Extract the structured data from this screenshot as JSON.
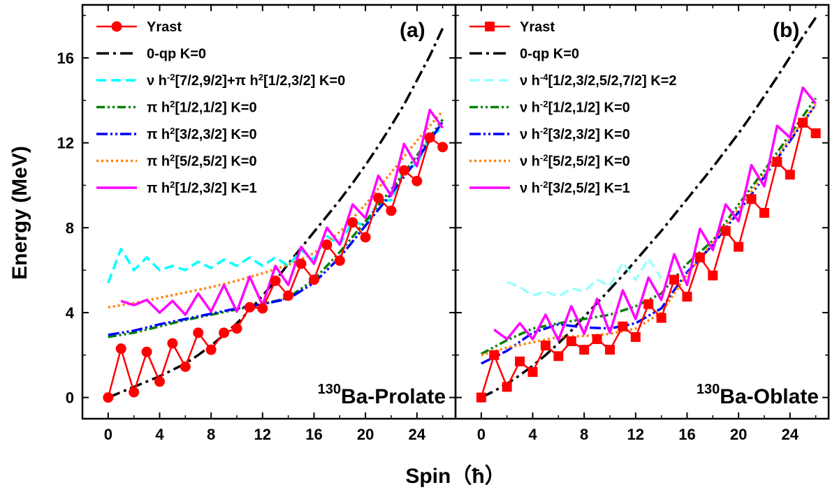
{
  "figure": {
    "ylabel": "Energy (MeV)",
    "xlabel": "Spin（ħ）"
  },
  "chart_data": [
    {
      "type": "line",
      "panel_label": "(a)",
      "nucleus_mass": "130",
      "nucleus_label": "Ba-Prolate",
      "xlabel": "Spin（ħ）",
      "ylabel": "Energy (MeV)",
      "xlim": [
        -2,
        27
      ],
      "ylim": [
        -1,
        18.5
      ],
      "xticks": [
        0,
        4,
        8,
        12,
        16,
        20,
        24
      ],
      "yticks": [
        0,
        4,
        8,
        12,
        16
      ],
      "legend_position": "top-left",
      "series": [
        {
          "name": "Yrast",
          "legend_segments": [
            [
              "Yrast",
              ""
            ]
          ],
          "color": "#ff0000",
          "dash": "",
          "width": 2.5,
          "marker": "circle",
          "x": [
            0,
            1,
            2,
            3,
            4,
            5,
            6,
            7,
            8,
            9,
            10,
            11,
            12,
            13,
            14,
            15,
            16,
            17,
            18,
            19,
            20,
            21,
            22,
            23,
            24,
            25,
            26
          ],
          "y": [
            0,
            2.3,
            0.25,
            2.15,
            0.75,
            2.55,
            1.45,
            3.05,
            2.25,
            3.05,
            3.25,
            4.25,
            4.2,
            5.5,
            4.8,
            6.3,
            5.55,
            7.2,
            6.45,
            8.25,
            7.55,
            9.4,
            8.8,
            10.7,
            10.2,
            12.25,
            11.8
          ]
        },
        {
          "name": "0-qp K=0",
          "legend_segments": [
            [
              "0-qp K=0",
              ""
            ]
          ],
          "color": "#000000",
          "dash": "18,6,4,6",
          "width": 3.5,
          "marker": "",
          "x": [
            0,
            1,
            2,
            3,
            4,
            5,
            6,
            7,
            8,
            9,
            10,
            11,
            12,
            13,
            14,
            15,
            16,
            17,
            18,
            19,
            20,
            21,
            22,
            23,
            24,
            25,
            26
          ],
          "y": [
            0,
            0.25,
            0.5,
            0.75,
            1.0,
            1.3,
            1.6,
            2.0,
            2.45,
            2.95,
            3.5,
            4.1,
            4.8,
            5.5,
            6.3,
            7.05,
            7.8,
            8.55,
            9.3,
            10.1,
            10.95,
            11.85,
            12.8,
            13.8,
            14.95,
            16.1,
            17.4
          ]
        },
        {
          "name": "νh-2[7/2,9/2]+πh2[1/2,3/2] K=0",
          "legend_segments": [
            [
              "ν h",
              ""
            ],
            [
              "-2",
              "sup"
            ],
            [
              "[7/2,9/2]+π h",
              ""
            ],
            [
              "2",
              "sup"
            ],
            [
              "[1/2,3/2]  K=0",
              ""
            ]
          ],
          "color": "#00ffff",
          "dash": "14,7",
          "width": 3.5,
          "marker": "",
          "x": [
            0,
            1,
            2,
            3,
            4,
            5,
            6,
            7,
            8,
            9,
            10,
            11,
            12,
            13,
            14,
            15,
            16,
            17,
            18,
            19,
            20,
            21,
            22,
            23,
            24,
            25,
            26
          ],
          "y": [
            5.4,
            7.0,
            6.0,
            6.6,
            6.0,
            6.2,
            6.0,
            6.4,
            6.1,
            6.5,
            6.2,
            6.6,
            6.2,
            6.6,
            6.2,
            6.95,
            6.5,
            7.6,
            7.2,
            8.3,
            8.1,
            9.25,
            9.3,
            10.7,
            11.0,
            12.3,
            12.7
          ]
        },
        {
          "name": "πh2[1/2,1/2] K=0",
          "legend_segments": [
            [
              "π h",
              ""
            ],
            [
              "2",
              "sup"
            ],
            [
              "[1/2,1/2] K=0",
              ""
            ]
          ],
          "color": "#008000",
          "dash": "12,4,3,4,3,4",
          "width": 3.5,
          "marker": "",
          "x": [
            0,
            2,
            4,
            6,
            8,
            10,
            12,
            14,
            16,
            18,
            20,
            22,
            24,
            26
          ],
          "y": [
            2.85,
            3.05,
            3.35,
            3.65,
            3.9,
            4.15,
            4.4,
            4.7,
            5.55,
            6.85,
            8.3,
            9.8,
            11.4,
            13.1
          ]
        },
        {
          "name": "πh2[3/2,3/2] K=0",
          "legend_segments": [
            [
              "π h",
              ""
            ],
            [
              "2",
              "sup"
            ],
            [
              "[3/2,3/2] K=0",
              ""
            ]
          ],
          "color": "#0000ff",
          "dash": "16,4,3,4,3,4",
          "width": 3.5,
          "marker": "",
          "x": [
            0,
            2,
            4,
            6,
            8,
            10,
            12,
            14,
            16,
            18,
            20,
            22,
            24,
            26
          ],
          "y": [
            2.95,
            3.15,
            3.45,
            3.7,
            3.95,
            4.2,
            4.4,
            4.65,
            5.4,
            6.6,
            8.1,
            9.6,
            11.2,
            13.0
          ]
        },
        {
          "name": "πh2[5/2,5/2] K=0",
          "legend_segments": [
            [
              "π h",
              ""
            ],
            [
              "2",
              "sup"
            ],
            [
              "[5/2,5/2] K=0",
              ""
            ]
          ],
          "color": "#ff8000",
          "dash": "3,4",
          "width": 3.5,
          "marker": "",
          "x": [
            0,
            2,
            4,
            6,
            8,
            10,
            12,
            14,
            16,
            18,
            20,
            22,
            24,
            26
          ],
          "y": [
            4.25,
            4.45,
            4.7,
            4.95,
            5.2,
            5.5,
            5.85,
            6.25,
            6.8,
            7.8,
            9.1,
            10.6,
            12.1,
            13.5
          ]
        },
        {
          "name": "πh2[1/2,3/2] K=1",
          "legend_segments": [
            [
              "π h",
              ""
            ],
            [
              "2",
              "sup"
            ],
            [
              "[1/2,3/2] K=1",
              ""
            ]
          ],
          "color": "#ff00ff",
          "dash": "",
          "width": 3.5,
          "marker": "",
          "x": [
            1,
            2,
            3,
            4,
            5,
            6,
            7,
            8,
            9,
            10,
            11,
            12,
            13,
            14,
            15,
            16,
            17,
            18,
            19,
            20,
            21,
            22,
            23,
            24,
            25,
            26
          ],
          "y": [
            4.55,
            4.35,
            4.6,
            4.0,
            4.55,
            3.9,
            4.9,
            4.05,
            5.3,
            4.05,
            5.7,
            4.35,
            6.2,
            5.3,
            7.1,
            6.3,
            8.0,
            7.2,
            9.1,
            8.45,
            10.45,
            9.5,
            11.95,
            10.9,
            13.55,
            12.7
          ]
        }
      ]
    },
    {
      "type": "line",
      "panel_label": "(b)",
      "nucleus_mass": "130",
      "nucleus_label": "Ba-Oblate",
      "xlabel": "Spin（ħ）",
      "ylabel": "Energy (MeV)",
      "xlim": [
        -2,
        27
      ],
      "ylim": [
        -1,
        18.5
      ],
      "xticks": [
        0,
        4,
        8,
        12,
        16,
        20,
        24
      ],
      "yticks": [
        0,
        4,
        8,
        12,
        16
      ],
      "legend_position": "top-left",
      "series": [
        {
          "name": "Yrast",
          "legend_segments": [
            [
              "Yrast",
              ""
            ]
          ],
          "color": "#ff0000",
          "dash": "",
          "width": 2.5,
          "marker": "square",
          "x": [
            0,
            1,
            2,
            3,
            4,
            5,
            6,
            7,
            8,
            9,
            10,
            11,
            12,
            13,
            14,
            15,
            16,
            17,
            18,
            19,
            20,
            21,
            22,
            23,
            24,
            25,
            26
          ],
          "y": [
            0,
            2.0,
            0.5,
            1.7,
            1.2,
            2.45,
            1.95,
            2.65,
            2.25,
            2.75,
            2.25,
            3.35,
            2.85,
            4.4,
            3.75,
            5.55,
            4.75,
            6.6,
            5.75,
            7.85,
            7.1,
            9.35,
            8.7,
            11.1,
            10.5,
            12.95,
            12.45
          ]
        },
        {
          "name": "0-qp K=0",
          "legend_segments": [
            [
              "0-qp K=0",
              ""
            ]
          ],
          "color": "#000000",
          "dash": "18,6,4,6",
          "width": 3.5,
          "marker": "",
          "x": [
            0,
            1,
            2,
            3,
            4,
            5,
            6,
            7,
            8,
            9,
            10,
            11,
            12,
            13,
            14,
            15,
            16,
            17,
            18,
            19,
            20,
            21,
            22,
            23,
            24,
            25,
            26
          ],
          "y": [
            0,
            0.3,
            0.65,
            1.05,
            1.5,
            2.0,
            2.55,
            3.15,
            3.8,
            4.45,
            5.1,
            5.75,
            6.45,
            7.15,
            7.85,
            8.6,
            9.35,
            10.1,
            10.85,
            11.65,
            12.45,
            13.3,
            14.2,
            15.1,
            16.05,
            17.0,
            17.9
          ]
        },
        {
          "name": "νh-4[1/2,3/2,5/2,7/2] K=2",
          "legend_segments": [
            [
              "ν h",
              ""
            ],
            [
              "-4",
              "sup"
            ],
            [
              "[1/2,3/2,5/2,7/2] K=2",
              ""
            ]
          ],
          "color": "#99ffff",
          "dash": "14,7",
          "width": 3.5,
          "marker": "",
          "x": [
            2,
            3,
            4,
            5,
            6,
            7,
            8,
            9,
            10,
            11,
            12,
            13,
            14
          ],
          "y": [
            5.45,
            5.2,
            4.8,
            5.0,
            4.75,
            5.15,
            5.0,
            5.55,
            5.25,
            6.35,
            5.55,
            6.55,
            5.6
          ]
        },
        {
          "name": "νh-2[1/2,1/2] K=0",
          "legend_segments": [
            [
              "ν h",
              ""
            ],
            [
              "-2",
              "sup"
            ],
            [
              "[1/2,1/2] K=0",
              ""
            ]
          ],
          "color": "#008000",
          "dash": "12,4,3,4,3,4",
          "width": 3.5,
          "marker": "",
          "x": [
            0,
            2,
            4,
            6,
            8,
            10,
            12,
            14,
            16,
            18,
            20,
            22,
            24,
            26
          ],
          "y": [
            2.05,
            2.7,
            3.25,
            3.5,
            3.7,
            3.9,
            4.3,
            4.9,
            6.3,
            7.4,
            9.1,
            10.7,
            12.4,
            14.1
          ]
        },
        {
          "name": "νh-2[3/2,3/2] K=0",
          "legend_segments": [
            [
              "ν h",
              ""
            ],
            [
              "-2",
              "sup"
            ],
            [
              "[3/2,3/2] K=0",
              ""
            ]
          ],
          "color": "#0000ff",
          "dash": "16,4,3,4,3,4",
          "width": 3.5,
          "marker": "",
          "x": [
            0,
            2,
            4,
            6,
            8,
            10,
            12,
            14,
            16,
            18,
            20,
            22,
            24,
            26
          ],
          "y": [
            1.6,
            2.2,
            3.05,
            3.45,
            3.3,
            3.25,
            3.5,
            4.2,
            5.9,
            7.2,
            8.75,
            10.4,
            12.1,
            13.8
          ]
        },
        {
          "name": "νh-2[5/2,5/2] K=0",
          "legend_segments": [
            [
              "ν h",
              ""
            ],
            [
              "-2",
              "sup"
            ],
            [
              "[5/2,5/2] K=0",
              ""
            ]
          ],
          "color": "#ff8000",
          "dash": "3,4",
          "width": 3.5,
          "marker": "",
          "x": [
            0,
            2,
            4,
            6,
            8,
            10,
            12,
            14,
            16,
            18,
            20,
            22,
            24,
            26
          ],
          "y": [
            2.0,
            2.35,
            2.6,
            2.85,
            2.9,
            3.0,
            3.25,
            4.0,
            5.8,
            7.3,
            8.9,
            10.5,
            12.2,
            13.8
          ]
        },
        {
          "name": "νh-2[3/2,5/2] K=1",
          "legend_segments": [
            [
              "ν h",
              ""
            ],
            [
              "-2",
              "sup"
            ],
            [
              "[3/2,5/2] K=1",
              ""
            ]
          ],
          "color": "#ff00ff",
          "dash": "",
          "width": 3.5,
          "marker": "",
          "x": [
            1,
            2,
            3,
            4,
            5,
            6,
            7,
            8,
            9,
            10,
            11,
            12,
            13,
            14,
            15,
            16,
            17,
            18,
            19,
            20,
            21,
            22,
            23,
            24,
            25,
            26
          ],
          "y": [
            3.2,
            2.75,
            3.5,
            2.75,
            3.9,
            2.7,
            4.3,
            3.0,
            4.65,
            3.05,
            5.05,
            3.7,
            5.65,
            4.6,
            6.75,
            5.3,
            7.95,
            6.95,
            9.1,
            8.3,
            10.95,
            9.95,
            12.8,
            12.25,
            14.6,
            13.85
          ]
        }
      ]
    }
  ]
}
